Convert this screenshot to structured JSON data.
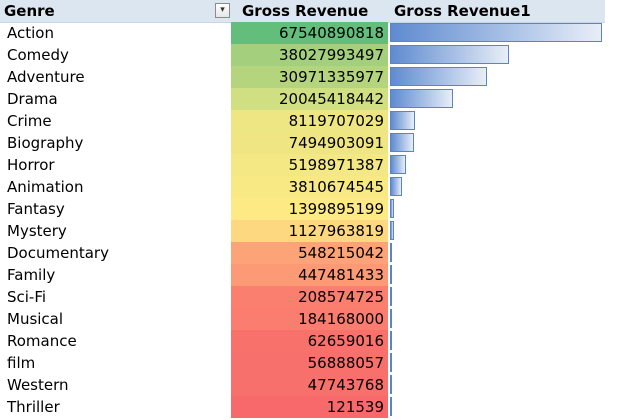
{
  "table": {
    "headers": {
      "genre": "Genre",
      "gross_revenue": "Gross Revenue",
      "gross_revenue1": "Gross Revenue1"
    },
    "filter_icon": "filter-dropdown-icon",
    "rows": [
      {
        "genre": "Action",
        "gross": "67540890818",
        "value": 67540890818,
        "color": "#63be7b"
      },
      {
        "genre": "Comedy",
        "gross": "38027993497",
        "value": 38027993497,
        "color": "#a4d07d"
      },
      {
        "genre": "Adventure",
        "gross": "30971335977",
        "value": 30971335977,
        "color": "#b4d57e"
      },
      {
        "genre": "Drama",
        "gross": "20045418442",
        "value": 20045418442,
        "color": "#cfdf81"
      },
      {
        "genre": "Crime",
        "gross": "8119707029",
        "value": 8119707029,
        "color": "#eee583"
      },
      {
        "genre": "Biography",
        "gross": "7494903091",
        "value": 7494903091,
        "color": "#efe683"
      },
      {
        "genre": "Horror",
        "gross": "5198971387",
        "value": 5198971387,
        "color": "#f4e884"
      },
      {
        "genre": "Animation",
        "gross": "3810674545",
        "value": 3810674545,
        "color": "#f8e984"
      },
      {
        "genre": "Fantasy",
        "gross": "1399895199",
        "value": 1399895199,
        "color": "#feea84"
      },
      {
        "genre": "Mystery",
        "gross": "1127963819",
        "value": 1127963819,
        "color": "#fed880"
      },
      {
        "genre": "Documentary",
        "gross": "548215042",
        "value": 548215042,
        "color": "#fca377"
      },
      {
        "genre": "Family",
        "gross": "447481433",
        "value": 447481433,
        "color": "#fb9a75"
      },
      {
        "genre": "Sci-Fi",
        "gross": "208574725",
        "value": 208574725,
        "color": "#fa7f6f"
      },
      {
        "genre": "Musical",
        "gross": "184168000",
        "value": 184168000,
        "color": "#fa7d6f"
      },
      {
        "genre": "Romance",
        "gross": "62659016",
        "value": 62659016,
        "color": "#f8716b"
      },
      {
        "genre": "film",
        "gross": "56888057",
        "value": 56888057,
        "color": "#f8706b"
      },
      {
        "genre": "Western",
        "gross": "47743768",
        "value": 47743768,
        "color": "#f8706b"
      },
      {
        "genre": "Thriller",
        "gross": "121539",
        "value": 121539,
        "color": "#f8696b"
      }
    ]
  }
}
